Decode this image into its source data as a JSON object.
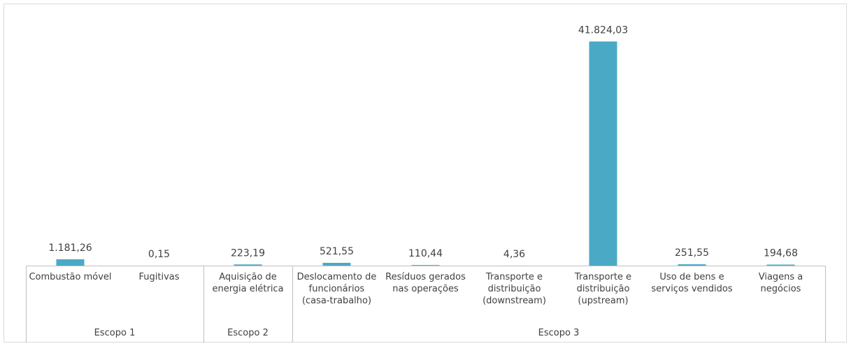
{
  "chart_data": {
    "type": "bar",
    "color": "#4aaac6",
    "ylim": [
      0,
      45000
    ],
    "groups": [
      {
        "name": "Escopo 1",
        "categories": [
          "Combustão móvel",
          "Fugitivas"
        ],
        "values": [
          1181.26,
          0.15
        ],
        "value_labels": [
          "1.181,26",
          "0,15"
        ]
      },
      {
        "name": "Escopo 2",
        "categories": [
          "Aquisição de energia elétrica"
        ],
        "values": [
          223.19
        ],
        "value_labels": [
          "223,19"
        ]
      },
      {
        "name": "Escopo 3",
        "categories": [
          "Deslocamento de funcionários (casa-trabalho)",
          "Resíduos gerados nas operações",
          "Transporte e distribuição (downstream)",
          "Transporte e distribuição (upstream)",
          "Uso de bens e serviços vendidos",
          "Viagens a negócios"
        ],
        "values": [
          521.55,
          110.44,
          4.36,
          41824.03,
          251.55,
          194.68
        ],
        "value_labels": [
          "521,55",
          "110,44",
          "4,36",
          "41.824,03",
          "251,55",
          "194,68"
        ]
      }
    ]
  }
}
